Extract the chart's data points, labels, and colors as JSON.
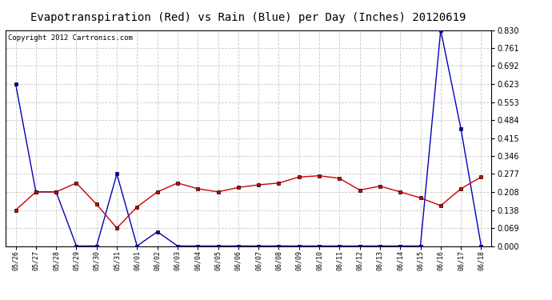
{
  "title": "Evapotranspiration (Red) vs Rain (Blue) per Day (Inches) 20120619",
  "copyright": "Copyright 2012 Cartronics.com",
  "x_labels": [
    "05/26",
    "05/27",
    "05/28",
    "05/29",
    "05/30",
    "05/31",
    "06/01",
    "06/02",
    "06/03",
    "06/04",
    "06/05",
    "06/06",
    "06/07",
    "06/08",
    "06/09",
    "06/10",
    "06/11",
    "06/12",
    "06/13",
    "06/14",
    "06/15",
    "06/16",
    "06/17",
    "06/18"
  ],
  "rain_blue": [
    0.623,
    0.208,
    0.208,
    0.0,
    0.0,
    0.277,
    0.0,
    0.055,
    0.0,
    0.0,
    0.0,
    0.0,
    0.0,
    0.0,
    0.0,
    0.0,
    0.0,
    0.0,
    0.0,
    0.0,
    0.0,
    0.83,
    0.45,
    0.0
  ],
  "et_red": [
    0.138,
    0.208,
    0.208,
    0.242,
    0.16,
    0.069,
    0.15,
    0.208,
    0.242,
    0.22,
    0.208,
    0.225,
    0.235,
    0.242,
    0.265,
    0.27,
    0.26,
    0.215,
    0.23,
    0.208,
    0.185,
    0.155,
    0.22,
    0.265
  ],
  "ylim": [
    0.0,
    0.83
  ],
  "yticks": [
    0.0,
    0.069,
    0.138,
    0.208,
    0.277,
    0.346,
    0.415,
    0.484,
    0.553,
    0.623,
    0.692,
    0.761,
    0.83
  ],
  "background_color": "#ffffff",
  "plot_bg_color": "#ffffff",
  "grid_color": "#c8c8c8",
  "blue_color": "#0000bb",
  "red_color": "#cc0000",
  "title_fontsize": 10,
  "copyright_fontsize": 6.5
}
